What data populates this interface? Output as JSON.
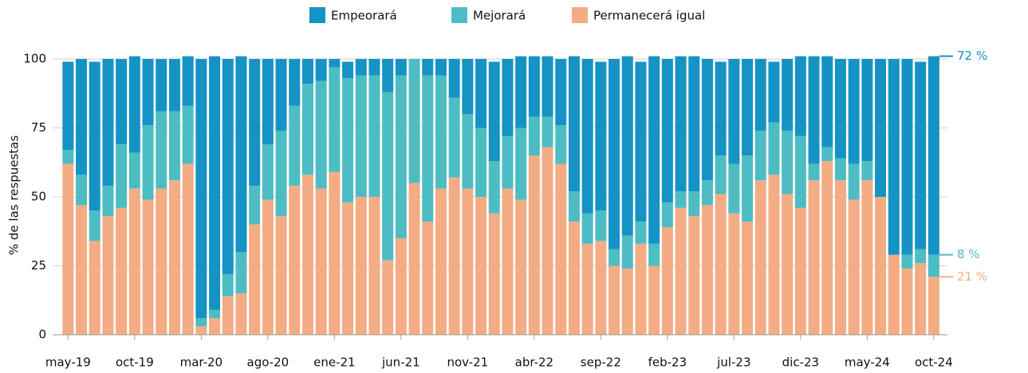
{
  "chart_data": {
    "type": "stacked_bar",
    "y_label": "% de las respuestas",
    "categories": [
      "may-19",
      null,
      null,
      null,
      null,
      "oct-19",
      null,
      null,
      null,
      null,
      "mar-20",
      null,
      null,
      null,
      null,
      "ago-20",
      null,
      null,
      null,
      null,
      "ene-21",
      null,
      null,
      null,
      null,
      "jun-21",
      null,
      null,
      null,
      null,
      "nov-21",
      null,
      null,
      null,
      null,
      "abr-22",
      null,
      null,
      null,
      null,
      "sep-22",
      null,
      null,
      null,
      null,
      "feb-23",
      null,
      null,
      null,
      null,
      "jul-23",
      null,
      null,
      null,
      null,
      "dic-23",
      null,
      null,
      null,
      null,
      "may-24",
      null,
      null,
      null,
      null,
      "oct-24"
    ],
    "series": [
      {
        "name": "Empeorará",
        "color": "#1593c4",
        "end_label": "72 %",
        "values": [
          32,
          42,
          54,
          46,
          31,
          35,
          24,
          19,
          19,
          18,
          94,
          92,
          78,
          71,
          46,
          31,
          26,
          17,
          9,
          8,
          3,
          6,
          6,
          6,
          12,
          6,
          0,
          6,
          6,
          14,
          20,
          25,
          36,
          28,
          26,
          22,
          22,
          24,
          49,
          56,
          54,
          69,
          65,
          58,
          68,
          52,
          49,
          49,
          44,
          34,
          38,
          35,
          26,
          22,
          26,
          29,
          39,
          33,
          36,
          38,
          37,
          50,
          71,
          71,
          68,
          72
        ]
      },
      {
        "name": "Mejorará",
        "color": "#4dbdc3",
        "end_label": "8 %",
        "values": [
          5,
          11,
          11,
          11,
          23,
          13,
          27,
          28,
          25,
          21,
          3,
          3,
          8,
          15,
          14,
          20,
          31,
          29,
          33,
          39,
          38,
          45,
          44,
          44,
          61,
          59,
          45,
          53,
          41,
          29,
          27,
          25,
          19,
          19,
          26,
          14,
          11,
          14,
          11,
          11,
          11,
          6,
          12,
          8,
          8,
          9,
          6,
          9,
          9,
          14,
          18,
          24,
          18,
          19,
          23,
          26,
          6,
          5,
          8,
          13,
          7,
          0,
          0,
          5,
          5,
          8
        ]
      },
      {
        "name": "Permanecerá igual",
        "color": "#f4ac84",
        "end_label": "21 %",
        "values": [
          62,
          47,
          34,
          43,
          46,
          53,
          49,
          53,
          56,
          62,
          3,
          6,
          14,
          15,
          40,
          49,
          43,
          54,
          58,
          53,
          59,
          48,
          50,
          50,
          27,
          35,
          55,
          41,
          53,
          57,
          53,
          50,
          44,
          53,
          49,
          65,
          68,
          62,
          41,
          33,
          34,
          25,
          24,
          33,
          25,
          39,
          46,
          43,
          47,
          51,
          44,
          41,
          56,
          58,
          51,
          46,
          56,
          63,
          56,
          49,
          56,
          50,
          29,
          24,
          26,
          21
        ]
      }
    ],
    "ylim": [
      0,
      105
    ],
    "yticks": [
      0,
      25,
      50,
      75,
      100
    ],
    "grid": true
  }
}
